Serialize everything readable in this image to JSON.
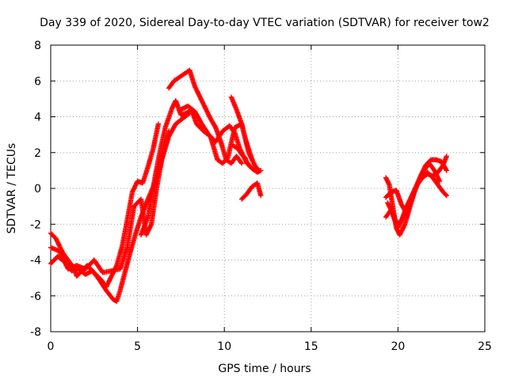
{
  "chart_data": {
    "type": "scatter",
    "title": "Day 339 of 2020, Sidereal Day-to-day VTEC variation (SDTVAR) for receiver tow2",
    "xlabel": "GPS time / hours",
    "ylabel": "SDTVAR / TECUs",
    "xlim": [
      0,
      25
    ],
    "ylim": [
      -8,
      8
    ],
    "xticks": [
      0,
      5,
      10,
      15,
      20,
      25
    ],
    "yticks": [
      -8,
      -6,
      -4,
      -2,
      0,
      2,
      4,
      6,
      8
    ],
    "grid": true,
    "marker": "+",
    "series": [
      {
        "name": "SDTVAR",
        "color": "#ff0000",
        "tracks": [
          {
            "x": [
              0.0,
              0.3,
              0.7,
              1.0,
              1.3,
              1.5,
              1.8,
              2.1,
              2.5,
              2.9,
              3.2,
              3.5,
              3.8,
              4.1,
              4.4,
              4.7,
              5.0,
              5.3,
              5.6,
              5.9,
              6.2
            ],
            "y": [
              -2.5,
              -2.8,
              -3.6,
              -4.0,
              -4.4,
              -4.9,
              -4.6,
              -4.3,
              -4.7,
              -5.1,
              -5.5,
              -4.9,
              -4.3,
              -3.3,
              -1.8,
              -0.2,
              0.4,
              0.3,
              1.2,
              2.2,
              3.6
            ]
          },
          {
            "x": [
              0.0,
              0.4,
              0.8,
              1.2,
              1.6,
              2.0,
              2.4,
              2.8,
              3.2,
              3.6,
              3.8,
              4.0,
              4.3,
              4.6,
              4.9,
              5.2,
              5.6,
              6.0,
              6.4,
              6.8,
              7.2,
              7.6,
              8.0
            ],
            "y": [
              -4.2,
              -3.8,
              -4.1,
              -4.6,
              -4.5,
              -4.8,
              -4.6,
              -5.1,
              -5.7,
              -6.2,
              -6.3,
              -5.7,
              -4.6,
              -3.5,
              -2.5,
              -1.6,
              -0.6,
              0.3,
              1.6,
              2.9,
              3.6,
              3.9,
              4.2
            ]
          },
          {
            "x": [
              0.0,
              0.5,
              1.0,
              1.5,
              2.0,
              2.5,
              3.0,
              3.5,
              4.0,
              4.4,
              4.8,
              5.2,
              5.5,
              5.8,
              6.1,
              6.4,
              6.8
            ],
            "y": [
              -3.3,
              -3.5,
              -4.5,
              -4.3,
              -4.5,
              -4.0,
              -4.7,
              -4.6,
              -4.5,
              -3.3,
              -1.0,
              -0.6,
              -2.6,
              -2.0,
              0.0,
              1.6,
              3.2
            ]
          },
          {
            "x": [
              5.2,
              5.6,
              6.0,
              6.3,
              6.6,
              7.0,
              7.2,
              7.5,
              7.8,
              8.1,
              8.4,
              8.8,
              9.2,
              9.6,
              9.9,
              10.2,
              10.6,
              11.0,
              11.4,
              11.8,
              12.0
            ],
            "y": [
              -2.6,
              -1.6,
              0.6,
              2.1,
              3.4,
              4.5,
              4.9,
              4.1,
              4.2,
              4.4,
              3.6,
              3.2,
              2.9,
              1.6,
              1.4,
              1.7,
              3.4,
              3.6,
              2.0,
              1.2,
              1.0
            ]
          },
          {
            "x": [
              6.8,
              7.1,
              7.4,
              7.7,
              8.0,
              8.3,
              8.6,
              8.9,
              9.2,
              9.5,
              9.8,
              10.1,
              10.4,
              10.7,
              11.0
            ],
            "y": [
              5.6,
              6.0,
              6.2,
              6.4,
              6.6,
              5.7,
              5.1,
              4.5,
              3.9,
              3.4,
              2.6,
              1.6,
              1.4,
              1.8,
              1.4
            ]
          },
          {
            "x": [
              7.5,
              7.9,
              8.3,
              8.7,
              9.1,
              9.5,
              9.9,
              10.3,
              10.6,
              10.9,
              11.2,
              11.5
            ],
            "y": [
              4.4,
              4.6,
              4.3,
              3.6,
              3.0,
              2.6,
              3.2,
              3.5,
              3.1,
              2.2,
              1.6,
              1.2
            ]
          },
          {
            "x": [
              10.5,
              10.8,
              11.0,
              11.2,
              11.3,
              11.6,
              11.9,
              12.1
            ],
            "y": [
              2.4,
              2.2,
              1.9,
              1.7,
              1.4,
              1.1,
              0.9,
              1.0
            ]
          },
          {
            "x": [
              10.4,
              10.7,
              11.0,
              11.2,
              11.4,
              11.6
            ],
            "y": [
              5.1,
              4.4,
              3.6,
              2.8,
              2.2,
              1.6
            ]
          },
          {
            "x": [
              11.0,
              11.3,
              11.6,
              11.9,
              12.1
            ],
            "y": [
              -0.6,
              -0.3,
              0.1,
              0.3,
              -0.4
            ]
          },
          {
            "x": [
              19.3,
              19.5,
              19.7,
              19.9,
              20.1,
              20.4,
              20.7,
              21.0,
              21.3,
              21.6,
              21.9,
              22.2,
              22.5,
              22.8
            ],
            "y": [
              0.6,
              0.2,
              -1.0,
              -2.2,
              -2.6,
              -2.0,
              -1.0,
              0.0,
              0.7,
              1.3,
              1.6,
              1.6,
              1.5,
              1.0
            ]
          },
          {
            "x": [
              19.3,
              19.6,
              19.9,
              20.2,
              20.5,
              20.8,
              21.1,
              21.4,
              21.7,
              22.0,
              22.3,
              22.6,
              22.8
            ],
            "y": [
              -0.5,
              -0.2,
              -0.1,
              -0.9,
              -1.4,
              -0.6,
              0.2,
              0.6,
              0.8,
              0.7,
              0.9,
              1.3,
              1.8
            ]
          },
          {
            "x": [
              19.3,
              19.6,
              19.9,
              20.2,
              20.5,
              20.8,
              21.1,
              21.4,
              21.7,
              22.0,
              22.3,
              22.6,
              22.8
            ],
            "y": [
              -1.6,
              -1.2,
              -2.0,
              -1.8,
              -1.0,
              -0.4,
              0.2,
              0.6,
              0.9,
              0.6,
              0.2,
              -0.2,
              -0.4
            ]
          },
          {
            "x": [
              19.4,
              19.7,
              20.0,
              20.3,
              20.6,
              20.9,
              21.2,
              21.5,
              21.8,
              22.1,
              22.4
            ],
            "y": [
              -0.8,
              -1.4,
              -2.2,
              -1.6,
              -1.0,
              -0.2,
              0.4,
              1.0,
              1.4,
              1.0,
              0.4
            ]
          }
        ]
      }
    ]
  }
}
